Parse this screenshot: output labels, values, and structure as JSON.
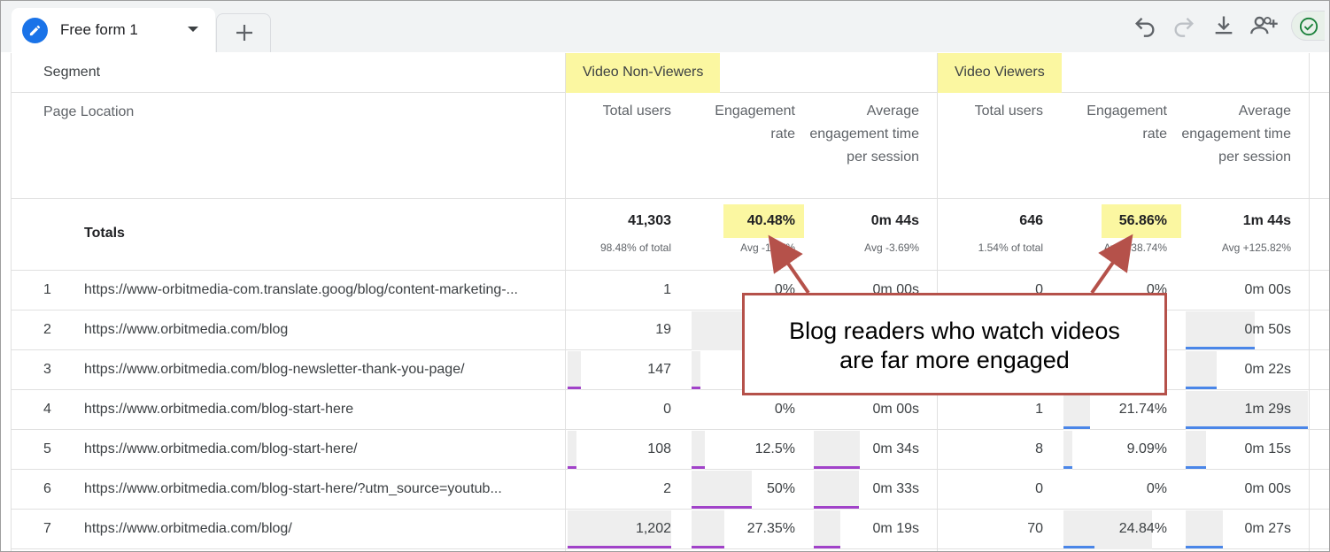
{
  "tab": {
    "label": "Free form 1"
  },
  "toolbar": {
    "undo": "undo-icon",
    "redo": "redo-icon",
    "download": "download-icon",
    "share": "share-users-icon",
    "check": "check-circle-icon"
  },
  "colors": {
    "accent": "#1a73e8",
    "highlight": "#fbf7a1",
    "purple_bar": "#a142c9",
    "blue_bar": "#4a86e8",
    "callout_border": "#b5514a"
  },
  "table": {
    "segment_label": "Segment",
    "dimension_label": "Page Location",
    "segments": [
      "Video Non-Viewers",
      "Video Viewers"
    ],
    "metric_headers": {
      "total_users": "Total users",
      "engagement_rate": "Engagement rate",
      "avg_engagement_time": "Average engagement time per session"
    },
    "totals": {
      "label": "Totals",
      "non_viewers": {
        "users": "41,303",
        "users_sub": "98.48% of total",
        "rate": "40.48%",
        "rate_sub": "Avg -1.37%",
        "time": "0m 44s",
        "time_sub": "Avg -3.69%"
      },
      "viewers": {
        "users": "646",
        "users_sub": "1.54% of total",
        "rate": "56.86%",
        "rate_sub": "Avg +38.74%",
        "time": "1m 44s",
        "time_sub": "Avg +125.82%"
      }
    },
    "rows": [
      {
        "idx": "1",
        "url": "https://www-orbitmedia-com.translate.goog/blog/content-marketing-...",
        "nv_users": "1",
        "nv_rate": "0%",
        "nv_time": "0m 00s",
        "v_users": "0",
        "v_rate": "0%",
        "v_time": "0m 00s"
      },
      {
        "idx": "2",
        "url": "https://www.orbitmedia.com/blog",
        "nv_users": "19",
        "nv_rate": "",
        "nv_time": "",
        "v_users": "",
        "v_rate": "",
        "v_time": "0m 50s"
      },
      {
        "idx": "3",
        "url": "https://www.orbitmedia.com/blog-newsletter-thank-you-page/",
        "nv_users": "147",
        "nv_rate": "",
        "nv_time": "",
        "v_users": "",
        "v_rate": "",
        "v_time": "0m 22s"
      },
      {
        "idx": "4",
        "url": "https://www.orbitmedia.com/blog-start-here",
        "nv_users": "0",
        "nv_rate": "0%",
        "nv_time": "0m 00s",
        "v_users": "1",
        "v_rate": "21.74%",
        "v_time": "1m 29s"
      },
      {
        "idx": "5",
        "url": "https://www.orbitmedia.com/blog-start-here/",
        "nv_users": "108",
        "nv_rate": "12.5%",
        "nv_time": "0m 34s",
        "v_users": "8",
        "v_rate": "9.09%",
        "v_time": "0m 15s"
      },
      {
        "idx": "6",
        "url": "https://www.orbitmedia.com/blog-start-here/?utm_source=youtub...",
        "nv_users": "2",
        "nv_rate": "50%",
        "nv_time": "0m 33s",
        "v_users": "0",
        "v_rate": "0%",
        "v_time": "0m 00s"
      },
      {
        "idx": "7",
        "url": "https://www.orbitmedia.com/blog/",
        "nv_users": "1,202",
        "nv_rate": "27.35%",
        "nv_time": "0m 19s",
        "v_users": "70",
        "v_rate": "24.84%",
        "v_time": "0m 27s"
      }
    ]
  },
  "callout": {
    "line1": "Blog readers who watch videos",
    "line2": "are far more engaged"
  }
}
